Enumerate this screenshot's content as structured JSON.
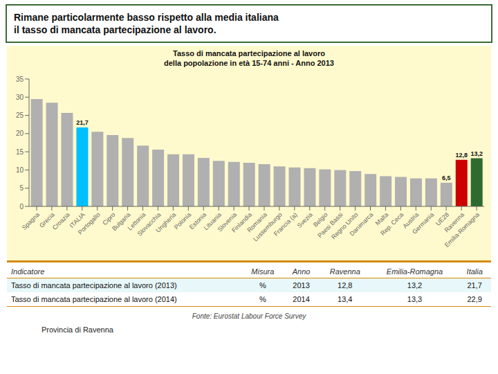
{
  "chart_data": {
    "type": "bar",
    "title": "Tasso di mancata partecipazione al lavoro\ndella popolazione in età 15-74 anni - Anno 2013",
    "categories": [
      "Spagna",
      "Grecia",
      "Croazia",
      "ITALIA",
      "Portogallo",
      "Cipro",
      "Bulgaria",
      "Lettonia",
      "Slovacchia",
      "Ungheria",
      "Polonia",
      "Estonia",
      "Lituania",
      "Slovenia",
      "Finlandia",
      "Romania",
      "Lussemburgo",
      "Francia (a)",
      "Svezia",
      "Belgio",
      "Paesi Bassi",
      "Regno Unito",
      "Danimarca",
      "Malta",
      "Rep. Ceca",
      "Austria",
      "Germania",
      "UE28",
      "Ravenna",
      "Emilia-Romagna"
    ],
    "values": [
      29.5,
      28.5,
      25.7,
      21.7,
      20.5,
      19.6,
      18.8,
      16.7,
      15.6,
      14.3,
      14.3,
      13.3,
      12.5,
      12.2,
      12.0,
      11.6,
      11.0,
      10.7,
      10.5,
      10.2,
      10.0,
      9.7,
      8.9,
      8.3,
      8.1,
      7.7,
      7.7,
      6.5,
      12.8,
      13.2
    ],
    "value_labels": [
      null,
      null,
      null,
      "21,7",
      null,
      null,
      null,
      null,
      null,
      null,
      null,
      null,
      null,
      null,
      null,
      null,
      null,
      null,
      null,
      null,
      null,
      null,
      null,
      null,
      null,
      null,
      null,
      "6,5",
      "12,8",
      "13,2"
    ],
    "colors": [
      "#B0B0B0",
      "#B0B0B0",
      "#B0B0B0",
      "#00BFFF",
      "#B0B0B0",
      "#B0B0B0",
      "#B0B0B0",
      "#B0B0B0",
      "#B0B0B0",
      "#B0B0B0",
      "#B0B0B0",
      "#B0B0B0",
      "#B0B0B0",
      "#B0B0B0",
      "#B0B0B0",
      "#B0B0B0",
      "#B0B0B0",
      "#B0B0B0",
      "#B0B0B0",
      "#B0B0B0",
      "#B0B0B0",
      "#B0B0B0",
      "#B0B0B0",
      "#B0B0B0",
      "#B0B0B0",
      "#B0B0B0",
      "#B0B0B0",
      "#B0B0B0",
      "#CC0000",
      "#2E6B2E"
    ],
    "ylim": [
      0,
      35
    ],
    "yticks": [
      0,
      5,
      10,
      15,
      20,
      25,
      30,
      35
    ],
    "grid": false
  },
  "header": "Rimane particolarmente basso rispetto alla media italiana\nil tasso di mancata partecipazione al lavoro.",
  "table": {
    "headers": [
      "Indicatore",
      "Misura",
      "Anno",
      "Ravenna",
      "Emilia-Romagna",
      "Italia"
    ],
    "rows": [
      [
        "Tasso di mancata partecipazione al lavoro (2013)",
        "%",
        "2013",
        "12,8",
        "13,2",
        "21,7"
      ],
      [
        "Tasso di mancata partecipazione al lavoro (2014)",
        "%",
        "2014",
        "13,4",
        "13,3",
        "22,9"
      ]
    ]
  },
  "footer": [
    "Fonte: Eurostat Labour Force Survey",
    "Provincia di Ravenna"
  ]
}
